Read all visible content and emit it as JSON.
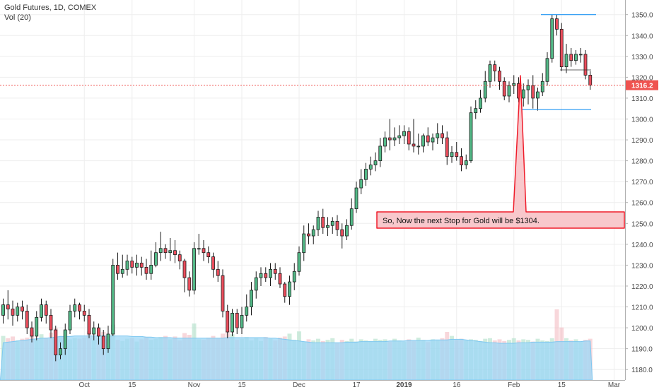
{
  "header": {
    "symbol_label": "Gold Futures, 1D, COMEX",
    "volume_label": "Vol (20)"
  },
  "annotation": {
    "text": "So, Now the next Stop for Gold will be $1304."
  },
  "colors": {
    "up": "#53b987",
    "down": "#eb4d5c",
    "volume_bar": "#8fd0f5",
    "volume_ma": "#9cd7f6",
    "support_resistance": "#2196f3",
    "price_line": "#ef5350",
    "price_tag": "#ef5350",
    "callout_fill": "#f8c8cc",
    "callout_border": "#ef1c2a",
    "grid": "#eeeeee",
    "axis_text": "#4a4a4a"
  },
  "chart_data": {
    "type": "candlestick",
    "title": "Gold Futures, 1D, COMEX",
    "xlabel": "",
    "ylabel": "",
    "ylim": [
      1175,
      1357
    ],
    "y_ticks": [
      1180,
      1190,
      1200,
      1210,
      1220,
      1230,
      1240,
      1250,
      1260,
      1270,
      1280,
      1290,
      1300,
      1310,
      1320,
      1330,
      1340,
      1350
    ],
    "x_ticks": [
      {
        "label": "Oct",
        "index": 17,
        "bold": false
      },
      {
        "label": "15",
        "index": 27,
        "bold": false
      },
      {
        "label": "Nov",
        "index": 40,
        "bold": false
      },
      {
        "label": "15",
        "index": 50,
        "bold": false
      },
      {
        "label": "Dec",
        "index": 62,
        "bold": false
      },
      {
        "label": "17",
        "index": 74,
        "bold": false
      },
      {
        "label": "2019",
        "index": 84,
        "bold": true
      },
      {
        "label": "16",
        "index": 95,
        "bold": false
      },
      {
        "label": "Feb",
        "index": 107,
        "bold": false
      },
      {
        "label": "15",
        "index": 117,
        "bold": false
      },
      {
        "label": "Mar",
        "index": 128,
        "bold": false
      }
    ],
    "last_price": 1316.2,
    "last_price_label": "1316.2",
    "resistance": 1350,
    "support": 1304.5,
    "grid": true,
    "candles": {
      "open": [
        1206,
        1211,
        1209,
        1206,
        1210,
        1208,
        1200,
        1196,
        1205,
        1211,
        1206,
        1199,
        1187,
        1190,
        1199,
        1208,
        1211,
        1208,
        1206,
        1197,
        1200,
        1196,
        1190,
        1197,
        1230,
        1226,
        1228,
        1232,
        1229,
        1231,
        1229,
        1226,
        1230,
        1236,
        1238,
        1236,
        1237,
        1235,
        1232,
        1224,
        1218,
        1238,
        1238,
        1236,
        1234,
        1228,
        1225,
        1208,
        1198,
        1207,
        1200,
        1206,
        1210,
        1218,
        1224,
        1226,
        1224,
        1228,
        1226,
        1221,
        1215,
        1222,
        1227,
        1236,
        1245,
        1244,
        1247,
        1253,
        1248,
        1249,
        1251,
        1247,
        1244,
        1249,
        1257,
        1267,
        1271,
        1276,
        1278,
        1280,
        1287,
        1291,
        1290,
        1291,
        1292,
        1294,
        1288,
        1287,
        1287,
        1292,
        1289,
        1291,
        1293,
        1291,
        1282,
        1284,
        1282,
        1278,
        1280,
        1303,
        1305,
        1310,
        1318,
        1326,
        1323,
        1318,
        1311,
        1316,
        1317,
        1310,
        1314,
        1316,
        1310,
        1313,
        1318,
        1329,
        1348,
        1343,
        1325,
        1331,
        1328,
        1331,
        1331,
        1321
      ],
      "close": [
        1211,
        1209,
        1206,
        1210,
        1208,
        1200,
        1196,
        1205,
        1211,
        1206,
        1199,
        1187,
        1190,
        1199,
        1208,
        1211,
        1208,
        1206,
        1197,
        1200,
        1196,
        1190,
        1197,
        1230,
        1226,
        1228,
        1232,
        1229,
        1231,
        1229,
        1226,
        1230,
        1236,
        1238,
        1236,
        1237,
        1235,
        1232,
        1224,
        1218,
        1238,
        1238,
        1236,
        1234,
        1228,
        1225,
        1208,
        1198,
        1207,
        1200,
        1206,
        1210,
        1218,
        1224,
        1226,
        1224,
        1228,
        1226,
        1221,
        1215,
        1222,
        1227,
        1236,
        1245,
        1244,
        1247,
        1253,
        1248,
        1249,
        1251,
        1247,
        1244,
        1249,
        1257,
        1267,
        1271,
        1276,
        1278,
        1280,
        1287,
        1291,
        1290,
        1291,
        1292,
        1294,
        1288,
        1287,
        1287,
        1292,
        1289,
        1291,
        1293,
        1291,
        1282,
        1284,
        1282,
        1278,
        1280,
        1303,
        1305,
        1310,
        1318,
        1326,
        1323,
        1318,
        1311,
        1316,
        1317,
        1310,
        1314,
        1316,
        1310,
        1313,
        1318,
        1329,
        1348,
        1343,
        1325,
        1331,
        1328,
        1331,
        1331,
        1321,
        1316.2
      ],
      "high": [
        1214,
        1218,
        1213,
        1212,
        1213,
        1211,
        1203,
        1208,
        1214,
        1213,
        1209,
        1201,
        1193,
        1202,
        1211,
        1214,
        1212,
        1211,
        1209,
        1203,
        1202,
        1199,
        1201,
        1233,
        1236,
        1235,
        1235,
        1234,
        1235,
        1234,
        1233,
        1237,
        1241,
        1246,
        1240,
        1243,
        1242,
        1237,
        1233,
        1227,
        1241,
        1245,
        1242,
        1239,
        1236,
        1232,
        1228,
        1211,
        1209,
        1209,
        1210,
        1216,
        1222,
        1227,
        1229,
        1229,
        1231,
        1231,
        1229,
        1222,
        1225,
        1231,
        1239,
        1249,
        1250,
        1249,
        1256,
        1257,
        1253,
        1253,
        1254,
        1250,
        1252,
        1262,
        1270,
        1276,
        1279,
        1282,
        1284,
        1291,
        1294,
        1300,
        1296,
        1297,
        1297,
        1296,
        1300,
        1293,
        1293,
        1296,
        1293,
        1298,
        1297,
        1294,
        1287,
        1289,
        1286,
        1283,
        1306,
        1309,
        1314,
        1323,
        1328,
        1328,
        1325,
        1320,
        1318,
        1321,
        1320,
        1317,
        1319,
        1321,
        1315,
        1322,
        1332,
        1350,
        1350,
        1346,
        1336,
        1334,
        1333,
        1334,
        1333,
        1323
      ],
      "low": [
        1202,
        1204,
        1201,
        1203,
        1204,
        1197,
        1193,
        1194,
        1203,
        1202,
        1195,
        1184,
        1185,
        1187,
        1197,
        1205,
        1204,
        1203,
        1195,
        1194,
        1192,
        1187,
        1188,
        1196,
        1223,
        1224,
        1225,
        1226,
        1225,
        1225,
        1223,
        1223,
        1229,
        1232,
        1233,
        1232,
        1231,
        1228,
        1217,
        1215,
        1216,
        1235,
        1232,
        1231,
        1224,
        1222,
        1205,
        1195,
        1196,
        1197,
        1197,
        1203,
        1206,
        1214,
        1220,
        1222,
        1220,
        1223,
        1219,
        1212,
        1211,
        1218,
        1225,
        1232,
        1240,
        1240,
        1244,
        1245,
        1244,
        1245,
        1244,
        1238,
        1242,
        1247,
        1255,
        1264,
        1268,
        1273,
        1275,
        1277,
        1284,
        1285,
        1287,
        1288,
        1288,
        1285,
        1284,
        1283,
        1284,
        1287,
        1285,
        1288,
        1288,
        1278,
        1279,
        1280,
        1275,
        1276,
        1279,
        1300,
        1303,
        1308,
        1315,
        1318,
        1314,
        1309,
        1308,
        1312,
        1308,
        1306,
        1307,
        1305,
        1304,
        1311,
        1316,
        1327,
        1340,
        1323,
        1322,
        1325,
        1326,
        1327,
        1319,
        1314
      ],
      "volume": [
        0.78,
        0.74,
        0.77,
        0.7,
        0.73,
        0.75,
        0.88,
        0.72,
        0.81,
        0.75,
        0.84,
        0.92,
        0.78,
        0.87,
        0.72,
        0.74,
        0.73,
        0.75,
        0.86,
        0.71,
        0.74,
        0.85,
        0.72,
        0.98,
        0.71,
        0.69,
        0.73,
        0.74,
        0.68,
        0.72,
        0.76,
        0.71,
        0.73,
        0.76,
        0.78,
        0.72,
        0.77,
        0.7,
        0.83,
        0.8,
        1.0,
        0.72,
        0.71,
        0.75,
        0.78,
        0.74,
        0.82,
        0.88,
        0.81,
        0.71,
        0.73,
        0.76,
        0.7,
        0.74,
        0.69,
        0.76,
        0.73,
        0.7,
        0.75,
        0.77,
        0.82,
        0.71,
        0.86,
        0.68,
        0.72,
        0.7,
        0.73,
        0.69,
        0.71,
        0.74,
        0.66,
        0.71,
        0.69,
        0.73,
        0.68,
        0.72,
        0.7,
        0.69,
        0.73,
        0.71,
        0.72,
        0.68,
        0.73,
        0.7,
        0.68,
        0.72,
        0.69,
        0.75,
        0.71,
        0.67,
        0.72,
        0.7,
        0.74,
        0.85,
        0.78,
        0.71,
        0.73,
        0.7,
        0.72,
        0.71,
        0.69,
        0.73,
        0.74,
        0.7,
        0.72,
        0.69,
        0.71,
        0.74,
        0.7,
        0.72,
        0.71,
        0.68,
        0.73,
        0.7,
        0.69,
        0.74,
        1.25,
        0.93,
        0.74,
        0.7,
        0.72,
        0.68,
        0.71,
        0.73
      ],
      "volume_ma": [
        0.66,
        0.67,
        0.68,
        0.69,
        0.7,
        0.71,
        0.72,
        0.73,
        0.74,
        0.74,
        0.75,
        0.76,
        0.77,
        0.77,
        0.77,
        0.78,
        0.78,
        0.78,
        0.78,
        0.78,
        0.78,
        0.78,
        0.78,
        0.78,
        0.78,
        0.78,
        0.78,
        0.77,
        0.77,
        0.77,
        0.76,
        0.76,
        0.75,
        0.75,
        0.75,
        0.75,
        0.74,
        0.74,
        0.74,
        0.74,
        0.74,
        0.74,
        0.74,
        0.74,
        0.74,
        0.74,
        0.74,
        0.75,
        0.75,
        0.75,
        0.75,
        0.75,
        0.75,
        0.75,
        0.75,
        0.75,
        0.74,
        0.74,
        0.73,
        0.72,
        0.71,
        0.7,
        0.69,
        0.68,
        0.67,
        0.66,
        0.66,
        0.66,
        0.66,
        0.66,
        0.66,
        0.66,
        0.67,
        0.67,
        0.67,
        0.68,
        0.68,
        0.68,
        0.68,
        0.68,
        0.68,
        0.69,
        0.69,
        0.69,
        0.69,
        0.7,
        0.7,
        0.7,
        0.7,
        0.7,
        0.71,
        0.71,
        0.71,
        0.71,
        0.72,
        0.72,
        0.72,
        0.71,
        0.7,
        0.69,
        0.68,
        0.67,
        0.66,
        0.66,
        0.65,
        0.65,
        0.65,
        0.65,
        0.66,
        0.66,
        0.66,
        0.67,
        0.67,
        0.67,
        0.67,
        0.67,
        0.68,
        0.68,
        0.68,
        0.68,
        0.68,
        0.68,
        0.69,
        0.69
      ]
    }
  }
}
